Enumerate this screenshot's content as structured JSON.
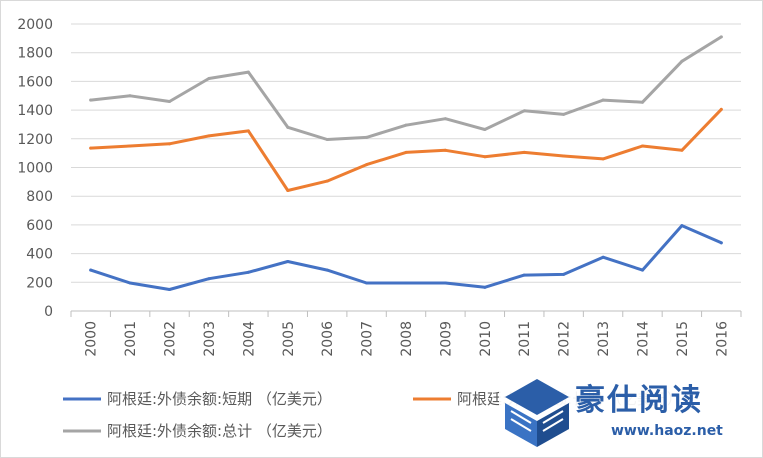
{
  "chart_data": {
    "type": "line",
    "title": "",
    "xlabel": "",
    "ylabel": "",
    "ylim": [
      0,
      2000
    ],
    "yticks": [
      0,
      200,
      400,
      600,
      800,
      1000,
      1200,
      1400,
      1600,
      1800,
      2000
    ],
    "grid": "horizontal",
    "legend_position": "bottom",
    "x": [
      "2000",
      "2001",
      "2002",
      "2003",
      "2004",
      "2005",
      "2006",
      "2007",
      "2008",
      "2009",
      "2010",
      "2011",
      "2012",
      "2013",
      "2014",
      "2015",
      "2016"
    ],
    "series": [
      {
        "name": "阿根廷:外债余额:短期 （亿美元）",
        "color": "#4472c4",
        "values": [
          285,
          195,
          150,
          225,
          270,
          345,
          285,
          195,
          195,
          195,
          165,
          250,
          255,
          375,
          285,
          595,
          475
        ]
      },
      {
        "name": "阿根廷:外债余额:长期 （亿美元）",
        "color": "#ed7d31",
        "values": [
          1135,
          1150,
          1165,
          1220,
          1255,
          840,
          905,
          1020,
          1105,
          1120,
          1075,
          1105,
          1080,
          1060,
          1150,
          1120,
          1405
        ]
      },
      {
        "name": "阿根廷:外债余额:总计 （亿美元）",
        "color": "#a5a5a5",
        "values": [
          1470,
          1500,
          1460,
          1620,
          1665,
          1280,
          1195,
          1210,
          1295,
          1340,
          1265,
          1395,
          1370,
          1470,
          1455,
          1740,
          1910
        ]
      }
    ]
  },
  "watermark": {
    "brand": "豪仕阅读",
    "url": "www.haoz.net",
    "icon": "book-logo-icon"
  }
}
